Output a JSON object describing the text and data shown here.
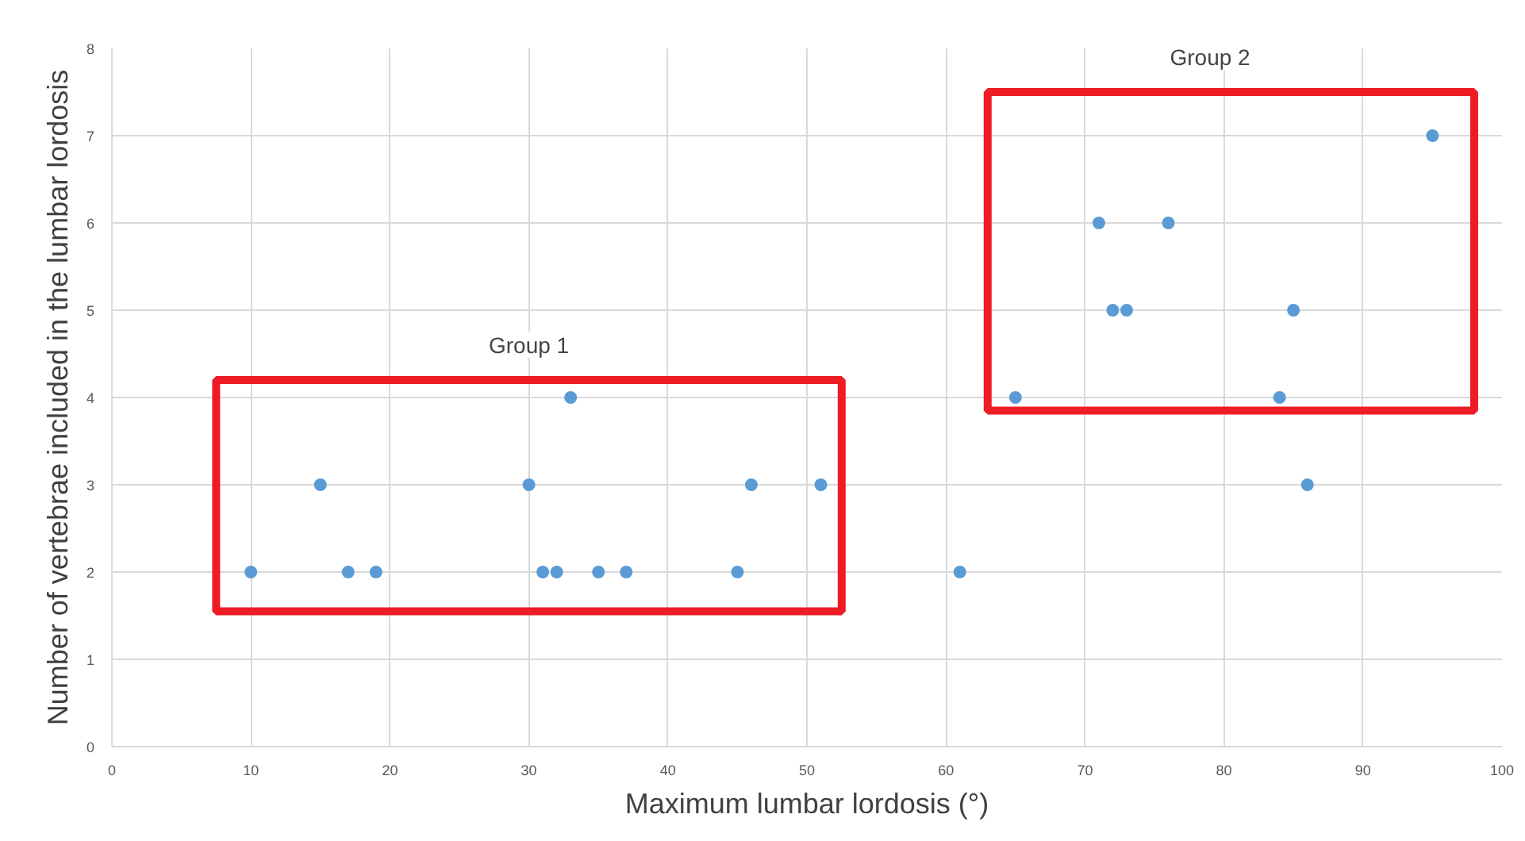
{
  "chart_data": {
    "type": "scatter",
    "xlabel": "Maximum lumbar lordosis (°)",
    "ylabel": "Number of vertebrae included in the lumbar lordosis",
    "x": [
      10,
      15,
      17,
      19,
      30,
      31,
      32,
      33,
      35,
      37,
      45,
      46,
      51,
      61,
      65,
      71,
      72,
      73,
      76,
      84,
      85,
      86,
      95
    ],
    "series": [
      {
        "color": "#5b9bd5",
        "values": [
          2,
          3,
          2,
          2,
          3,
          2,
          2,
          4,
          2,
          2,
          2,
          3,
          3,
          2,
          4,
          6,
          5,
          5,
          6,
          4,
          5,
          3,
          7
        ]
      }
    ],
    "xlim": [
      0,
      100
    ],
    "xticks": [
      0,
      10,
      20,
      30,
      40,
      50,
      60,
      70,
      80,
      90,
      100
    ],
    "ylim": [
      0,
      8
    ],
    "yticks": [
      0,
      1,
      2,
      3,
      4,
      5,
      6,
      7,
      8
    ],
    "grid": true,
    "marker": "circle",
    "annotations": [
      "Group 1",
      "Group 2"
    ]
  }
}
